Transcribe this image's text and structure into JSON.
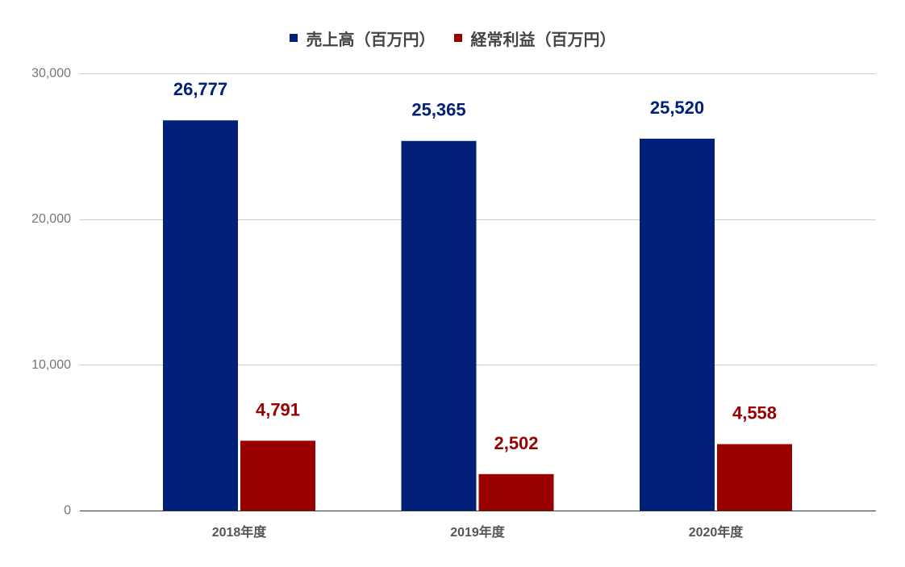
{
  "chart_data": {
    "type": "bar",
    "categories": [
      "2018年度",
      "2019年度",
      "2020年度"
    ],
    "series": [
      {
        "name": "売上高（百万円）",
        "values": [
          26777,
          25365,
          25520
        ],
        "labels": [
          "26,777",
          "25,365",
          "25,520"
        ],
        "color": "#002079"
      },
      {
        "name": "経常利益（百万円）",
        "values": [
          4791,
          2502,
          4558
        ],
        "labels": [
          "4,791",
          "2,502",
          "4,558"
        ],
        "color": "#990000"
      }
    ],
    "ylim": [
      0,
      30000
    ],
    "y_ticks": [
      {
        "value": 0,
        "label": "0"
      },
      {
        "value": 10000,
        "label": "10,000"
      },
      {
        "value": 20000,
        "label": "20,000"
      },
      {
        "value": 30000,
        "label": "30,000"
      }
    ],
    "grid": true,
    "legend": "top"
  }
}
